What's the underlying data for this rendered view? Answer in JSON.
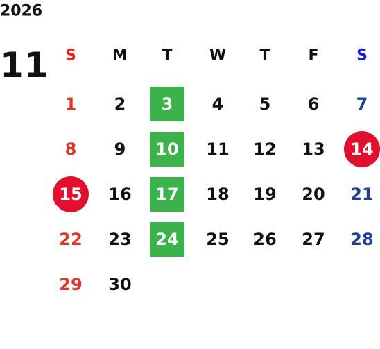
{
  "calendar": {
    "year": "2026",
    "month": "11",
    "weekdays": [
      "S",
      "M",
      "T",
      "W",
      "T",
      "F",
      "S"
    ],
    "weeks": [
      [
        {
          "day": "1"
        },
        {
          "day": "2"
        },
        {
          "day": "3",
          "style": "box"
        },
        {
          "day": "4"
        },
        {
          "day": "5"
        },
        {
          "day": "6"
        },
        {
          "day": "7"
        }
      ],
      [
        {
          "day": "8"
        },
        {
          "day": "9"
        },
        {
          "day": "10",
          "style": "box"
        },
        {
          "day": "11"
        },
        {
          "day": "12"
        },
        {
          "day": "13"
        },
        {
          "day": "14",
          "style": "circle"
        }
      ],
      [
        {
          "day": "15",
          "style": "circle"
        },
        {
          "day": "16"
        },
        {
          "day": "17",
          "style": "box"
        },
        {
          "day": "18"
        },
        {
          "day": "19"
        },
        {
          "day": "20"
        },
        {
          "day": "21"
        }
      ],
      [
        {
          "day": "22"
        },
        {
          "day": "23"
        },
        {
          "day": "24",
          "style": "box"
        },
        {
          "day": "25"
        },
        {
          "day": "26"
        },
        {
          "day": "27"
        },
        {
          "day": "28"
        }
      ],
      [
        {
          "day": "29"
        },
        {
          "day": "30"
        },
        null,
        null,
        null,
        null,
        null
      ]
    ]
  }
}
